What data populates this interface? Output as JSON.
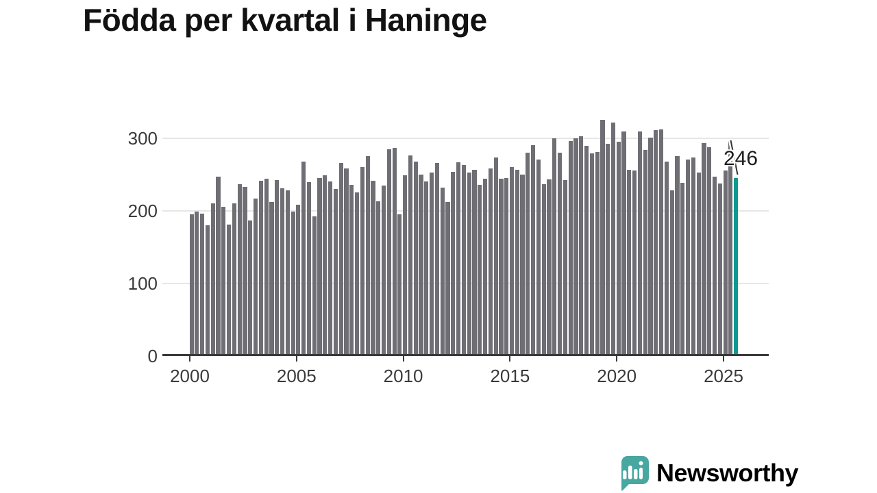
{
  "title": "Födda per kvartal i Haninge",
  "chart_data": {
    "type": "bar",
    "title": "Födda per kvartal i Haninge",
    "x_start_year": 2000,
    "x_start_quarter": 1,
    "period": "quarterly",
    "x_tick_labels": [
      "2000",
      "2005",
      "2010",
      "2015",
      "2020",
      "2025"
    ],
    "y_tick_labels": [
      "0",
      "100",
      "200",
      "300"
    ],
    "ylim": [
      0,
      340
    ],
    "grid": "horizontal",
    "values": [
      195,
      199,
      196,
      180,
      211,
      247,
      206,
      181,
      211,
      237,
      233,
      187,
      217,
      242,
      245,
      212,
      243,
      231,
      229,
      199,
      209,
      268,
      240,
      193,
      246,
      249,
      241,
      230,
      266,
      259,
      236,
      226,
      261,
      276,
      242,
      213,
      235,
      285,
      287,
      195,
      249,
      277,
      268,
      250,
      241,
      253,
      266,
      232,
      212,
      254,
      267,
      264,
      253,
      257,
      236,
      245,
      259,
      274,
      245,
      246,
      261,
      257,
      250,
      281,
      291,
      271,
      237,
      244,
      300,
      281,
      243,
      297,
      300,
      303,
      290,
      280,
      282,
      326,
      293,
      322,
      296,
      310,
      257,
      256,
      310,
      284,
      301,
      312,
      313,
      268,
      229,
      276,
      239,
      271,
      274,
      253,
      294,
      288,
      247,
      238,
      256,
      297,
      246
    ],
    "highlight_index": 102,
    "highlight_value": 246,
    "colors": {
      "bar": "#6f6e74",
      "highlight": "#0a9a8f",
      "axis": "#3a3a3a",
      "grid": "#e6e6e6"
    }
  },
  "annotation": {
    "text": "246"
  },
  "footer": {
    "brand": "Newsworthy",
    "brand_color": "#46a59f"
  }
}
